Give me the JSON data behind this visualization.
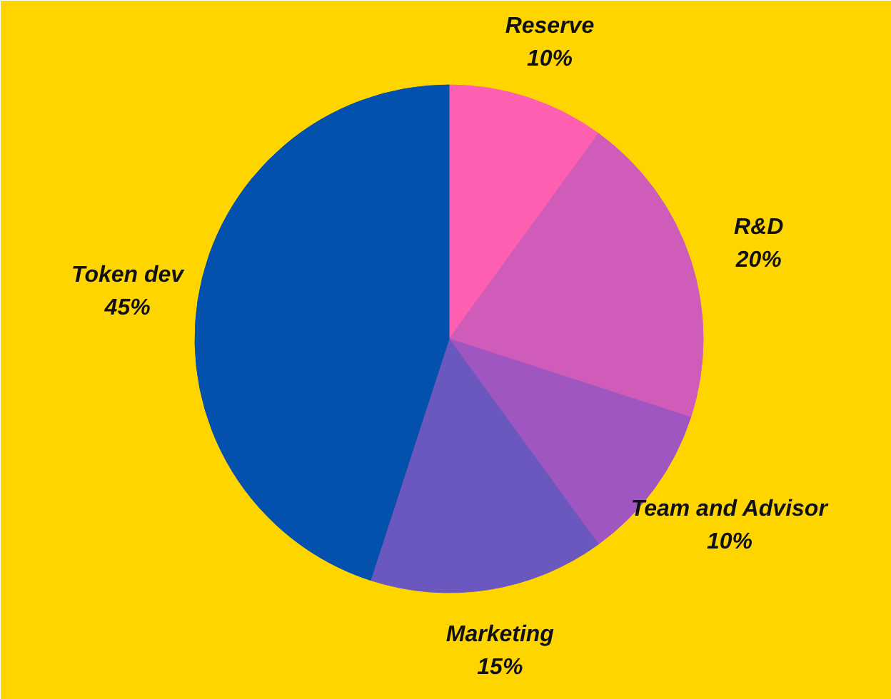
{
  "chart_data": {
    "type": "pie",
    "categories": [
      "Reserve",
      "R&D",
      "Team and Advisor",
      "Marketing",
      "Token dev"
    ],
    "values": [
      10,
      20,
      10,
      15,
      45
    ],
    "value_labels": [
      "10%",
      "20%",
      "10%",
      "15%",
      "45%"
    ],
    "colors": [
      "#ff5fb1",
      "#d05cba",
      "#a056c0",
      "#6a58bf",
      "#0350ad"
    ]
  }
}
